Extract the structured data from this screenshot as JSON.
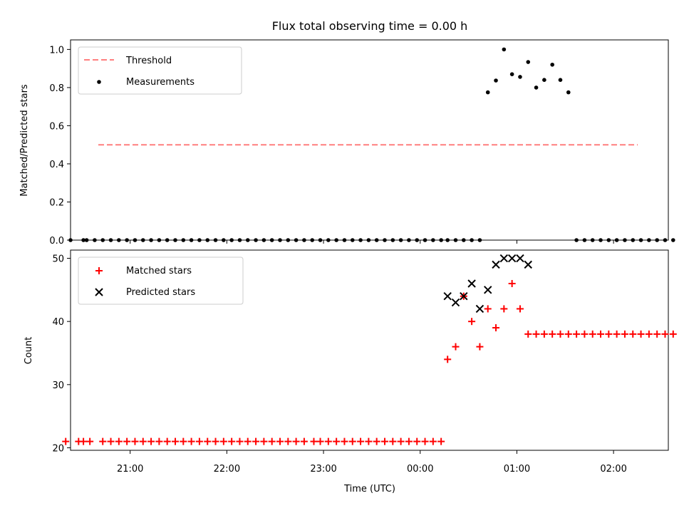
{
  "title": "Flux total observing time = 0.00 h",
  "colors": {
    "threshold": "#ff7f7f",
    "measurement": "#000000",
    "matched": "#ff0000",
    "predicted": "#000000"
  },
  "chart_data": [
    {
      "type": "scatter",
      "panel": "top",
      "ylabel": "Matched/Predicted stars",
      "ylim": [
        0,
        1.05
      ],
      "yticks": [
        0.0,
        0.2,
        0.4,
        0.6,
        0.8,
        1.0
      ],
      "ytick_labels": [
        "0.0",
        "0.2",
        "0.4",
        "0.6",
        "0.8",
        "1.0"
      ],
      "xlim": [
        "20:23",
        "02:34"
      ],
      "xticks": [
        "21:00",
        "22:00",
        "23:00",
        "00:00",
        "01:00",
        "02:00"
      ],
      "legend": "upper-left",
      "grid": false,
      "threshold": {
        "name": "Threshold",
        "value": 0.5,
        "x": [
          "20:23",
          "02:34"
        ],
        "style": "dashed"
      },
      "series": [
        {
          "name": "Measurements",
          "x": [
            "20:23",
            "20:31",
            "20:33",
            "20:38",
            "20:43",
            "20:48",
            "20:53",
            "20:58",
            "21:03",
            "21:08",
            "21:13",
            "21:18",
            "21:23",
            "21:28",
            "21:33",
            "21:38",
            "21:43",
            "21:48",
            "21:53",
            "21:58",
            "22:03",
            "22:08",
            "22:13",
            "22:18",
            "22:23",
            "22:28",
            "22:33",
            "22:38",
            "22:43",
            "22:48",
            "22:53",
            "22:58",
            "23:03",
            "23:08",
            "23:13",
            "23:18",
            "23:23",
            "23:28",
            "23:33",
            "23:38",
            "23:43",
            "23:48",
            "23:53",
            "23:58",
            "00:03",
            "00:08",
            "00:13",
            "00:17",
            "00:22",
            "00:27",
            "00:32",
            "00:37",
            "00:42",
            "00:47",
            "00:52",
            "00:57",
            "01:02",
            "01:07",
            "01:12",
            "01:17",
            "01:22",
            "01:27",
            "01:32",
            "01:37",
            "01:42",
            "01:47",
            "01:52",
            "01:57",
            "02:02",
            "02:07",
            "02:12",
            "02:17",
            "02:22",
            "02:27",
            "02:32",
            "02:37"
          ],
          "y": [
            0,
            0,
            0,
            0,
            0,
            0,
            0,
            0,
            0,
            0,
            0,
            0,
            0,
            0,
            0,
            0,
            0,
            0,
            0,
            0,
            0,
            0,
            0,
            0,
            0,
            0,
            0,
            0,
            0,
            0,
            0,
            0,
            0,
            0,
            0,
            0,
            0,
            0,
            0,
            0,
            0,
            0,
            0,
            0,
            0,
            0,
            0,
            0,
            0,
            0,
            0,
            0,
            0.775,
            0.837,
            1.0,
            0.87,
            0.856,
            0.934,
            0.8,
            0.84,
            0.92,
            0.84,
            0.775,
            0,
            0,
            0,
            0,
            0,
            0,
            0,
            0,
            0,
            0,
            0,
            0,
            0
          ]
        }
      ]
    },
    {
      "type": "scatter",
      "panel": "bottom",
      "xlabel": "Time (UTC)",
      "ylabel": "Count",
      "ylim": [
        19.6,
        51.3
      ],
      "yticks": [
        20,
        30,
        40,
        50
      ],
      "ytick_labels": [
        "20",
        "30",
        "40",
        "50"
      ],
      "xlim": [
        "20:23",
        "02:34"
      ],
      "xticks": [
        "21:00",
        "22:00",
        "23:00",
        "00:00",
        "01:00",
        "02:00"
      ],
      "xtick_labels": [
        "21:00",
        "22:00",
        "23:00",
        "00:00",
        "01:00",
        "02:00"
      ],
      "legend": "upper-left",
      "grid": false,
      "series": [
        {
          "name": "Matched stars",
          "marker": "plus",
          "x": [
            "20:20",
            "20:28",
            "20:31",
            "20:35",
            "20:43",
            "20:48",
            "20:53",
            "20:58",
            "21:03",
            "21:08",
            "21:13",
            "21:18",
            "21:23",
            "21:28",
            "21:33",
            "21:38",
            "21:43",
            "21:48",
            "21:53",
            "21:58",
            "22:03",
            "22:08",
            "22:13",
            "22:18",
            "22:23",
            "22:28",
            "22:33",
            "22:38",
            "22:43",
            "22:48",
            "22:54",
            "22:58",
            "23:03",
            "23:08",
            "23:13",
            "23:18",
            "23:23",
            "23:28",
            "23:33",
            "23:38",
            "23:43",
            "23:48",
            "23:53",
            "23:58",
            "00:03",
            "00:08",
            "00:13",
            "00:17",
            "00:22",
            "00:27",
            "00:32",
            "00:37",
            "00:42",
            "00:47",
            "00:52",
            "00:57",
            "01:02",
            "01:07",
            "01:12",
            "01:17",
            "01:22",
            "01:27",
            "01:32",
            "01:37",
            "01:42",
            "01:47",
            "01:52",
            "01:57",
            "02:02",
            "02:07",
            "02:12",
            "02:17",
            "02:22",
            "02:27",
            "02:32",
            "02:37"
          ],
          "y": [
            21,
            21,
            21,
            21,
            21,
            21,
            21,
            21,
            21,
            21,
            21,
            21,
            21,
            21,
            21,
            21,
            21,
            21,
            21,
            21,
            21,
            21,
            21,
            21,
            21,
            21,
            21,
            21,
            21,
            21,
            21,
            21,
            21,
            21,
            21,
            21,
            21,
            21,
            21,
            21,
            21,
            21,
            21,
            21,
            21,
            21,
            21,
            34,
            36,
            44,
            40,
            36,
            42,
            39,
            42,
            46,
            42,
            38,
            38,
            38,
            38,
            38,
            38,
            38,
            38,
            38,
            38,
            38,
            38,
            38,
            38,
            38,
            38,
            38,
            38,
            38
          ]
        },
        {
          "name": "Predicted stars",
          "marker": "x",
          "x": [
            "00:17",
            "00:22",
            "00:27",
            "00:32",
            "00:37",
            "00:42",
            "00:47",
            "00:52",
            "00:57",
            "01:02",
            "01:07"
          ],
          "y": [
            44,
            43,
            44,
            46,
            42,
            45,
            49,
            50,
            50,
            50,
            49
          ]
        }
      ]
    }
  ]
}
